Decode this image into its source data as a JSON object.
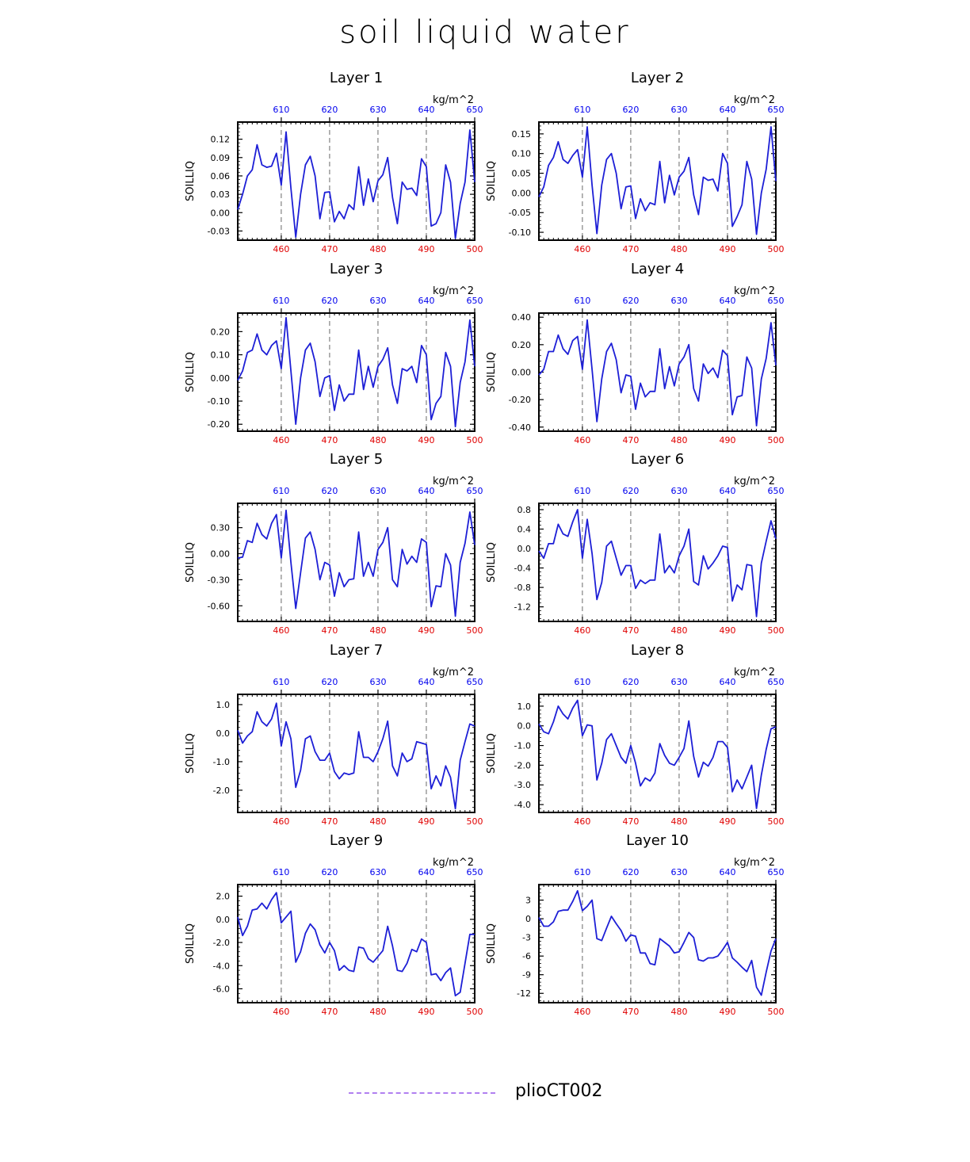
{
  "title": "soil liquid water",
  "legend": {
    "label": "plioCT002",
    "line_color": "#b07ff0"
  },
  "colors": {
    "series": "#1d1fd6",
    "bottom_axis": "#e00000",
    "top_axis": "#0000ee",
    "frame": "#000000",
    "grid": "#444444"
  },
  "chart_data": [
    {
      "type": "line",
      "title": "Layer 1",
      "ylabel": "SOILLIQ",
      "top_units": "kg/m^2",
      "xlim": [
        451,
        500
      ],
      "x_ticks": [
        460,
        470,
        480,
        490,
        500
      ],
      "top_ticks": [
        "610",
        "620",
        "630",
        "640",
        "650"
      ],
      "ylim": [
        -0.045,
        0.148
      ],
      "y_ticks": [
        -0.03,
        0.0,
        0.03,
        0.06,
        0.09,
        0.12
      ],
      "y_tick_labels": [
        "-0.03",
        "0.00",
        "0.03",
        "0.06",
        "0.09",
        "0.12"
      ],
      "grid_x": [
        460,
        470,
        480,
        490
      ],
      "series": [
        {
          "x_start": 451,
          "values": [
            0.005,
            0.03,
            0.06,
            0.07,
            0.111,
            0.078,
            0.074,
            0.076,
            0.097,
            0.045,
            0.132,
            0.04,
            -0.04,
            0.03,
            0.078,
            0.092,
            0.06,
            -0.01,
            0.033,
            0.034,
            -0.015,
            0.002,
            -0.01,
            0.013,
            0.005,
            0.075,
            0.012,
            0.055,
            0.018,
            0.052,
            0.062,
            0.09,
            0.025,
            -0.018,
            0.05,
            0.038,
            0.04,
            0.028,
            0.088,
            0.075,
            -0.022,
            -0.018,
            0.0,
            0.078,
            0.05,
            -0.042,
            0.015,
            0.05,
            0.135,
            0.05
          ]
        }
      ]
    },
    {
      "type": "line",
      "title": "Layer 2",
      "ylabel": "SOILLIQ",
      "top_units": "kg/m^2",
      "xlim": [
        451,
        500
      ],
      "x_ticks": [
        460,
        470,
        480,
        490,
        500
      ],
      "top_ticks": [
        "610",
        "620",
        "630",
        "640",
        "650"
      ],
      "ylim": [
        -0.12,
        0.18
      ],
      "y_ticks": [
        -0.1,
        -0.05,
        0.0,
        0.05,
        0.1,
        0.15
      ],
      "y_tick_labels": [
        "-0.10",
        "-0.05",
        "0.00",
        "0.05",
        "0.10",
        "0.15"
      ],
      "grid_x": [
        460,
        470,
        480,
        490
      ],
      "series": [
        {
          "x_start": 451,
          "values": [
            -0.01,
            0.015,
            0.07,
            0.09,
            0.13,
            0.085,
            0.075,
            0.095,
            0.11,
            0.04,
            0.168,
            0.02,
            -0.103,
            0.02,
            0.085,
            0.1,
            0.05,
            -0.04,
            0.015,
            0.018,
            -0.065,
            -0.015,
            -0.045,
            -0.025,
            -0.03,
            0.08,
            -0.025,
            0.045,
            -0.005,
            0.04,
            0.055,
            0.09,
            -0.005,
            -0.055,
            0.04,
            0.032,
            0.035,
            0.005,
            0.1,
            0.075,
            -0.085,
            -0.06,
            -0.03,
            0.08,
            0.035,
            -0.105,
            0.0,
            0.06,
            0.168,
            0.03
          ]
        }
      ]
    },
    {
      "type": "line",
      "title": "Layer 3",
      "ylabel": "SOILLIQ",
      "top_units": "kg/m^2",
      "xlim": [
        451,
        500
      ],
      "x_ticks": [
        460,
        470,
        480,
        490,
        500
      ],
      "top_ticks": [
        "610",
        "620",
        "630",
        "640",
        "650"
      ],
      "ylim": [
        -0.23,
        0.28
      ],
      "y_ticks": [
        -0.2,
        -0.1,
        0.0,
        0.1,
        0.2
      ],
      "y_tick_labels": [
        "-0.20",
        "-0.10",
        "0.00",
        "0.10",
        "0.20"
      ],
      "grid_x": [
        460,
        470,
        480,
        490
      ],
      "series": [
        {
          "x_start": 451,
          "values": [
            -0.01,
            0.03,
            0.11,
            0.12,
            0.19,
            0.12,
            0.1,
            0.14,
            0.16,
            0.04,
            0.26,
            0.03,
            -0.2,
            0.0,
            0.12,
            0.15,
            0.07,
            -0.08,
            0.0,
            0.01,
            -0.14,
            -0.03,
            -0.1,
            -0.07,
            -0.07,
            0.12,
            -0.05,
            0.05,
            -0.04,
            0.05,
            0.08,
            0.13,
            -0.03,
            -0.11,
            0.04,
            0.03,
            0.05,
            -0.02,
            0.14,
            0.1,
            -0.18,
            -0.11,
            -0.08,
            0.11,
            0.05,
            -0.21,
            -0.02,
            0.07,
            0.25,
            0.05
          ]
        }
      ]
    },
    {
      "type": "line",
      "title": "Layer 4",
      "ylabel": "SOILLIQ",
      "top_units": "kg/m^2",
      "xlim": [
        451,
        500
      ],
      "x_ticks": [
        460,
        470,
        480,
        490,
        500
      ],
      "top_ticks": [
        "610",
        "620",
        "630",
        "640",
        "650"
      ],
      "ylim": [
        -0.43,
        0.43
      ],
      "y_ticks": [
        -0.4,
        -0.2,
        0.0,
        0.2,
        0.4
      ],
      "y_tick_labels": [
        "-0.40",
        "-0.20",
        "0.00",
        "0.20",
        "0.40"
      ],
      "grid_x": [
        460,
        470,
        480,
        490
      ],
      "series": [
        {
          "x_start": 451,
          "values": [
            -0.02,
            0.02,
            0.15,
            0.15,
            0.27,
            0.17,
            0.13,
            0.23,
            0.26,
            0.02,
            0.38,
            0.02,
            -0.36,
            -0.05,
            0.15,
            0.21,
            0.09,
            -0.15,
            -0.02,
            -0.03,
            -0.27,
            -0.08,
            -0.18,
            -0.14,
            -0.14,
            0.17,
            -0.12,
            0.04,
            -0.1,
            0.06,
            0.11,
            0.2,
            -0.12,
            -0.21,
            0.06,
            -0.01,
            0.03,
            -0.04,
            0.16,
            0.12,
            -0.31,
            -0.18,
            -0.17,
            0.11,
            0.03,
            -0.39,
            -0.05,
            0.1,
            0.36,
            0.05
          ]
        }
      ]
    },
    {
      "type": "line",
      "title": "Layer 5",
      "ylabel": "SOILLIQ",
      "top_units": "kg/m^2",
      "xlim": [
        451,
        500
      ],
      "x_ticks": [
        460,
        470,
        480,
        490,
        500
      ],
      "top_ticks": [
        "610",
        "620",
        "630",
        "640",
        "650"
      ],
      "ylim": [
        -0.78,
        0.58
      ],
      "y_ticks": [
        -0.6,
        -0.3,
        0.0,
        0.3
      ],
      "y_tick_labels": [
        "-0.60",
        "-0.30",
        "0.00",
        "0.30"
      ],
      "grid_x": [
        460,
        470,
        480,
        490
      ],
      "series": [
        {
          "x_start": 451,
          "values": [
            -0.05,
            -0.04,
            0.15,
            0.13,
            0.35,
            0.22,
            0.17,
            0.35,
            0.45,
            -0.05,
            0.5,
            -0.1,
            -0.63,
            -0.22,
            0.18,
            0.25,
            0.05,
            -0.3,
            -0.1,
            -0.13,
            -0.49,
            -0.22,
            -0.38,
            -0.3,
            -0.29,
            0.25,
            -0.26,
            -0.1,
            -0.26,
            0.05,
            0.13,
            0.3,
            -0.3,
            -0.38,
            0.05,
            -0.12,
            -0.03,
            -0.1,
            0.17,
            0.13,
            -0.61,
            -0.37,
            -0.38,
            0.0,
            -0.13,
            -0.72,
            -0.1,
            0.12,
            0.48,
            0.1
          ]
        }
      ]
    },
    {
      "type": "line",
      "title": "Layer 6",
      "ylabel": "SOILLIQ",
      "top_units": "kg/m^2",
      "xlim": [
        451,
        500
      ],
      "x_ticks": [
        460,
        470,
        480,
        490,
        500
      ],
      "top_ticks": [
        "610",
        "620",
        "630",
        "640",
        "650"
      ],
      "ylim": [
        -1.5,
        0.93
      ],
      "y_ticks": [
        -1.2,
        -0.8,
        -0.4,
        0.0,
        0.4,
        0.8
      ],
      "y_tick_labels": [
        "-1.2",
        "-0.8",
        "-0.4",
        "0.0",
        "0.4",
        "0.8"
      ],
      "grid_x": [
        460,
        470,
        480,
        490
      ],
      "series": [
        {
          "x_start": 451,
          "values": [
            -0.05,
            -0.2,
            0.1,
            0.1,
            0.5,
            0.3,
            0.25,
            0.55,
            0.8,
            -0.2,
            0.6,
            -0.1,
            -1.05,
            -0.7,
            0.05,
            0.15,
            -0.2,
            -0.55,
            -0.35,
            -0.35,
            -0.82,
            -0.65,
            -0.72,
            -0.65,
            -0.65,
            0.3,
            -0.5,
            -0.35,
            -0.5,
            -0.15,
            0.05,
            0.4,
            -0.68,
            -0.75,
            -0.15,
            -0.42,
            -0.3,
            -0.15,
            0.05,
            0.02,
            -1.08,
            -0.75,
            -0.85,
            -0.33,
            -0.35,
            -1.4,
            -0.3,
            0.15,
            0.57,
            0.2
          ]
        }
      ]
    },
    {
      "type": "line",
      "title": "Layer 7",
      "ylabel": "SOILLIQ",
      "top_units": "kg/m^2",
      "xlim": [
        451,
        500
      ],
      "x_ticks": [
        460,
        470,
        480,
        490,
        500
      ],
      "top_ticks": [
        "610",
        "620",
        "630",
        "640",
        "650"
      ],
      "ylim": [
        -2.78,
        1.36
      ],
      "y_ticks": [
        -2.0,
        -1.0,
        0.0,
        1.0
      ],
      "y_tick_labels": [
        "-2.0",
        "-1.0",
        "0.0",
        "1.0"
      ],
      "grid_x": [
        460,
        470,
        480,
        490
      ],
      "series": [
        {
          "x_start": 451,
          "values": [
            0.1,
            -0.35,
            -0.1,
            0.05,
            0.75,
            0.4,
            0.25,
            0.5,
            1.05,
            -0.45,
            0.4,
            -0.2,
            -1.9,
            -1.3,
            -0.2,
            -0.1,
            -0.65,
            -0.95,
            -0.95,
            -0.7,
            -1.35,
            -1.6,
            -1.4,
            -1.45,
            -1.4,
            0.05,
            -0.85,
            -0.85,
            -1.0,
            -0.65,
            -0.2,
            0.42,
            -1.15,
            -1.5,
            -0.7,
            -1.0,
            -0.9,
            -0.3,
            -0.35,
            -0.4,
            -1.95,
            -1.5,
            -1.85,
            -1.15,
            -1.55,
            -2.65,
            -0.95,
            -0.3,
            0.32,
            0.25
          ]
        }
      ]
    },
    {
      "type": "line",
      "title": "Layer 8",
      "ylabel": "SOILLIQ",
      "top_units": "kg/m^2",
      "xlim": [
        451,
        500
      ],
      "x_ticks": [
        460,
        470,
        480,
        490,
        500
      ],
      "top_ticks": [
        "610",
        "620",
        "630",
        "640",
        "650"
      ],
      "ylim": [
        -4.4,
        1.6
      ],
      "y_ticks": [
        -4.0,
        -3.0,
        -2.0,
        -1.0,
        0.0,
        1.0
      ],
      "y_tick_labels": [
        "-4.0",
        "-3.0",
        "-2.0",
        "-1.0",
        "0.0",
        "1.0"
      ],
      "grid_x": [
        460,
        470,
        480,
        490
      ],
      "series": [
        {
          "x_start": 451,
          "values": [
            0.1,
            -0.3,
            -0.4,
            0.2,
            1.0,
            0.6,
            0.35,
            0.9,
            1.3,
            -0.5,
            0.05,
            0.0,
            -2.75,
            -1.9,
            -0.7,
            -0.4,
            -1.0,
            -1.6,
            -1.9,
            -1.0,
            -1.9,
            -3.05,
            -2.65,
            -2.8,
            -2.4,
            -0.9,
            -1.5,
            -1.9,
            -2.0,
            -1.6,
            -1.15,
            0.25,
            -1.55,
            -2.6,
            -1.85,
            -2.05,
            -1.6,
            -0.8,
            -0.8,
            -1.1,
            -3.35,
            -2.75,
            -3.2,
            -2.6,
            -2.0,
            -4.2,
            -2.5,
            -1.2,
            -0.15,
            -0.05
          ]
        }
      ]
    },
    {
      "type": "line",
      "title": "Layer 9",
      "ylabel": "SOILLIQ",
      "top_units": "kg/m^2",
      "xlim": [
        451,
        500
      ],
      "x_ticks": [
        460,
        470,
        480,
        490,
        500
      ],
      "top_ticks": [
        "610",
        "620",
        "630",
        "640",
        "650"
      ],
      "ylim": [
        -7.2,
        3.0
      ],
      "y_ticks": [
        -6.0,
        -4.0,
        -2.0,
        0.0,
        2.0
      ],
      "y_tick_labels": [
        "-6.0",
        "-4.0",
        "-2.0",
        "0.0",
        "2.0"
      ],
      "grid_x": [
        460,
        470,
        480,
        490
      ],
      "series": [
        {
          "x_start": 451,
          "values": [
            0.2,
            -1.4,
            -0.6,
            0.8,
            0.9,
            1.4,
            0.9,
            1.7,
            2.3,
            -0.3,
            0.2,
            0.7,
            -3.7,
            -2.8,
            -1.2,
            -0.4,
            -0.9,
            -2.2,
            -2.9,
            -2.0,
            -2.7,
            -4.4,
            -4.0,
            -4.4,
            -4.5,
            -2.4,
            -2.5,
            -3.4,
            -3.7,
            -3.2,
            -2.7,
            -0.6,
            -2.3,
            -4.4,
            -4.5,
            -3.8,
            -2.6,
            -2.8,
            -1.7,
            -2.0,
            -4.8,
            -4.7,
            -5.3,
            -4.6,
            -4.2,
            -6.6,
            -6.3,
            -3.8,
            -1.3,
            -1.3
          ]
        }
      ]
    },
    {
      "type": "line",
      "title": "Layer 10",
      "ylabel": "SOILLIQ",
      "top_units": "kg/m^2",
      "xlim": [
        451,
        500
      ],
      "x_ticks": [
        460,
        470,
        480,
        490,
        500
      ],
      "top_ticks": [
        "610",
        "620",
        "630",
        "640",
        "650"
      ],
      "ylim": [
        -13.5,
        5.5
      ],
      "y_ticks": [
        -12,
        -9,
        -6,
        -3,
        0,
        3
      ],
      "y_tick_labels": [
        "-12",
        "-9",
        "-6",
        "-3",
        "0",
        "3"
      ],
      "grid_x": [
        460,
        470,
        480,
        490
      ],
      "series": [
        {
          "x_start": 451,
          "values": [
            0.2,
            -1.2,
            -1.2,
            -0.5,
            1.2,
            1.4,
            1.4,
            2.8,
            4.5,
            1.3,
            2.0,
            3.0,
            -3.2,
            -3.5,
            -1.5,
            0.4,
            -0.8,
            -1.9,
            -3.6,
            -2.6,
            -2.8,
            -5.5,
            -5.5,
            -7.2,
            -7.4,
            -3.2,
            -3.8,
            -4.4,
            -5.5,
            -5.3,
            -3.8,
            -2.2,
            -3.0,
            -6.6,
            -6.8,
            -6.3,
            -6.3,
            -6.0,
            -5.0,
            -3.8,
            -6.3,
            -7.0,
            -7.8,
            -8.5,
            -6.7,
            -11.0,
            -12.3,
            -8.6,
            -5.2,
            -3.2
          ]
        }
      ]
    }
  ]
}
